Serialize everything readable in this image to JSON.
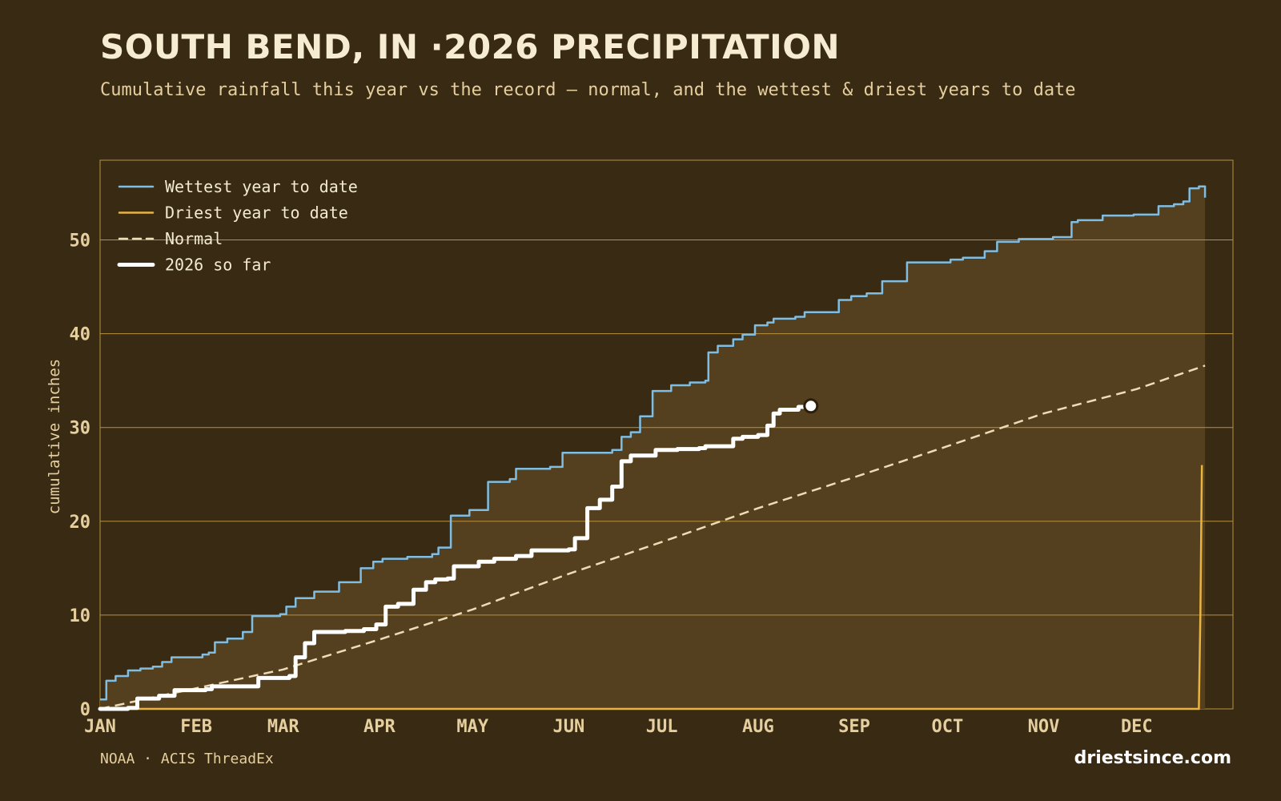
{
  "header": {
    "title": "SOUTH BEND, IN ·2026 PRECIPITATION",
    "subtitle": "Cumulative rainfall this year vs the record — normal, and the wettest & driest years to date"
  },
  "footer": {
    "source": "NOAA · ACIS ThreadEx",
    "brand": "driestsince.com"
  },
  "colors": {
    "background": "#392a13",
    "band_fill": "#54401e",
    "plot_border": "#b8913f",
    "grid": "#b8913f",
    "wettest": "#7fbde3",
    "driest": "#e9b342",
    "normal": "#eddcb5",
    "current": "#ffffff",
    "tick_text": "#e6cf9e"
  },
  "chart_data": {
    "type": "line",
    "title": "SOUTH BEND, IN ·2026 PRECIPITATION",
    "subtitle": "Cumulative rainfall this year vs the record — normal, and the wettest & driest years to date",
    "xlabel": "",
    "ylabel": "cumulative inches",
    "x_unit": "day of year",
    "xlim": [
      1,
      366
    ],
    "ylim": [
      0,
      58.5
    ],
    "yticks": [
      0,
      10,
      20,
      30,
      40,
      50
    ],
    "xticks": [
      {
        "label": "JAN",
        "day": 1
      },
      {
        "label": "FEB",
        "day": 32
      },
      {
        "label": "MAR",
        "day": 60
      },
      {
        "label": "APR",
        "day": 91
      },
      {
        "label": "MAY",
        "day": 121
      },
      {
        "label": "JUN",
        "day": 152
      },
      {
        "label": "JUL",
        "day": 182
      },
      {
        "label": "AUG",
        "day": 213
      },
      {
        "label": "SEP",
        "day": 244
      },
      {
        "label": "OCT",
        "day": 274
      },
      {
        "label": "NOV",
        "day": 305
      },
      {
        "label": "DEC",
        "day": 335
      }
    ],
    "grid": true,
    "legend_position": "top-left",
    "series": [
      {
        "name": "Wettest year to date",
        "style": "step",
        "color": "#7fbde3",
        "points": [
          [
            1,
            1.0
          ],
          [
            3,
            3.0
          ],
          [
            6,
            3.5
          ],
          [
            8,
            3.5
          ],
          [
            10,
            4.1
          ],
          [
            14,
            4.3
          ],
          [
            18,
            4.5
          ],
          [
            21,
            5.0
          ],
          [
            24,
            5.5
          ],
          [
            34,
            5.8
          ],
          [
            36,
            6.0
          ],
          [
            38,
            7.1
          ],
          [
            42,
            7.5
          ],
          [
            47,
            8.2
          ],
          [
            50,
            9.9
          ],
          [
            59,
            10.1
          ],
          [
            61,
            10.9
          ],
          [
            64,
            11.8
          ],
          [
            70,
            12.5
          ],
          [
            78,
            13.5
          ],
          [
            85,
            15.0
          ],
          [
            89,
            15.7
          ],
          [
            92,
            16.0
          ],
          [
            100,
            16.2
          ],
          [
            108,
            16.5
          ],
          [
            110,
            17.2
          ],
          [
            114,
            20.6
          ],
          [
            120,
            21.2
          ],
          [
            126,
            24.2
          ],
          [
            133,
            24.5
          ],
          [
            135,
            25.6
          ],
          [
            146,
            25.8
          ],
          [
            150,
            27.3
          ],
          [
            166,
            27.6
          ],
          [
            169,
            29.0
          ],
          [
            172,
            29.5
          ],
          [
            175,
            31.2
          ],
          [
            179,
            33.9
          ],
          [
            185,
            34.5
          ],
          [
            191,
            34.8
          ],
          [
            196,
            35.0
          ],
          [
            197,
            38.0
          ],
          [
            200,
            38.7
          ],
          [
            205,
            39.4
          ],
          [
            208,
            39.9
          ],
          [
            212,
            40.9
          ],
          [
            216,
            41.2
          ],
          [
            218,
            41.6
          ],
          [
            225,
            41.8
          ],
          [
            228,
            42.3
          ],
          [
            239,
            43.6
          ],
          [
            243,
            44.0
          ],
          [
            248,
            44.3
          ],
          [
            253,
            45.6
          ],
          [
            261,
            47.6
          ],
          [
            275,
            47.9
          ],
          [
            279,
            48.1
          ],
          [
            286,
            48.8
          ],
          [
            290,
            49.8
          ],
          [
            297,
            50.1
          ],
          [
            308,
            50.3
          ],
          [
            314,
            51.9
          ],
          [
            316,
            52.1
          ],
          [
            324,
            52.6
          ],
          [
            334,
            52.7
          ],
          [
            342,
            53.6
          ],
          [
            347,
            53.8
          ],
          [
            350,
            54.1
          ],
          [
            352,
            55.5
          ],
          [
            355,
            55.7
          ],
          [
            357,
            54.5
          ]
        ]
      },
      {
        "name": "Driest year to date",
        "style": "line",
        "color": "#e9b342",
        "points": [
          [
            1,
            0
          ],
          [
            355,
            0
          ],
          [
            355.5,
            10
          ],
          [
            356,
            26.0
          ]
        ]
      },
      {
        "name": "Normal",
        "style": "dashed",
        "color": "#eddcb5",
        "points": [
          [
            1,
            0
          ],
          [
            32,
            2.2
          ],
          [
            60,
            4.2
          ],
          [
            91,
            7.4
          ],
          [
            121,
            10.6
          ],
          [
            152,
            14.4
          ],
          [
            182,
            17.8
          ],
          [
            213,
            21.4
          ],
          [
            244,
            24.7
          ],
          [
            274,
            28.0
          ],
          [
            305,
            31.5
          ],
          [
            335,
            34.1
          ],
          [
            357,
            36.6
          ]
        ]
      },
      {
        "name": "2026 so far",
        "style": "step-bold",
        "color": "#ffffff",
        "points": [
          [
            1,
            0
          ],
          [
            10,
            0.1
          ],
          [
            13,
            1.1
          ],
          [
            20,
            1.4
          ],
          [
            25,
            2.0
          ],
          [
            35,
            2.1
          ],
          [
            37,
            2.4
          ],
          [
            48,
            2.4
          ],
          [
            52,
            3.3
          ],
          [
            62,
            3.5
          ],
          [
            64,
            5.5
          ],
          [
            67,
            7.0
          ],
          [
            70,
            8.2
          ],
          [
            80,
            8.3
          ],
          [
            86,
            8.5
          ],
          [
            90,
            9.0
          ],
          [
            93,
            10.9
          ],
          [
            97,
            11.2
          ],
          [
            102,
            12.7
          ],
          [
            106,
            13.5
          ],
          [
            109,
            13.8
          ],
          [
            113,
            13.9
          ],
          [
            115,
            15.2
          ],
          [
            123,
            15.7
          ],
          [
            128,
            16.0
          ],
          [
            135,
            16.3
          ],
          [
            140,
            16.9
          ],
          [
            152,
            17.0
          ],
          [
            154,
            18.2
          ],
          [
            158,
            21.4
          ],
          [
            162,
            22.3
          ],
          [
            166,
            23.7
          ],
          [
            169,
            26.4
          ],
          [
            172,
            27.0
          ],
          [
            178,
            27.0
          ],
          [
            180,
            27.6
          ],
          [
            187,
            27.7
          ],
          [
            194,
            27.8
          ],
          [
            196,
            28.0
          ],
          [
            202,
            28.0
          ],
          [
            205,
            28.8
          ],
          [
            208,
            29.0
          ],
          [
            213,
            29.2
          ],
          [
            216,
            30.2
          ],
          [
            218,
            31.5
          ],
          [
            220,
            31.9
          ],
          [
            226,
            32.2
          ],
          [
            230,
            32.3
          ]
        ],
        "marker_day": 230,
        "marker_value": 32.3
      }
    ]
  }
}
